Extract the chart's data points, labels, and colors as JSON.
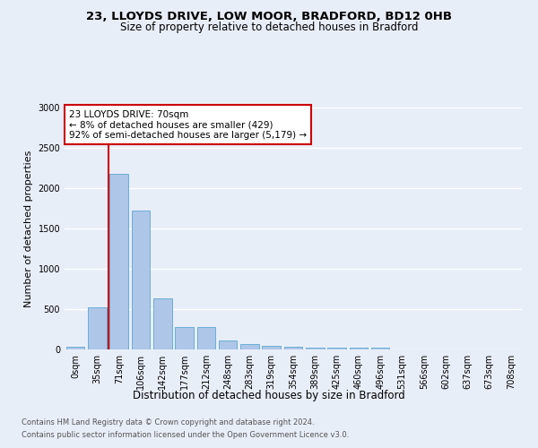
{
  "title_line1": "23, LLOYDS DRIVE, LOW MOOR, BRADFORD, BD12 0HB",
  "title_line2": "Size of property relative to detached houses in Bradford",
  "xlabel": "Distribution of detached houses by size in Bradford",
  "ylabel": "Number of detached properties",
  "categories": [
    "0sqm",
    "35sqm",
    "71sqm",
    "106sqm",
    "142sqm",
    "177sqm",
    "212sqm",
    "248sqm",
    "283sqm",
    "319sqm",
    "354sqm",
    "389sqm",
    "425sqm",
    "460sqm",
    "496sqm",
    "531sqm",
    "566sqm",
    "602sqm",
    "637sqm",
    "673sqm",
    "708sqm"
  ],
  "values": [
    30,
    520,
    2180,
    1720,
    635,
    280,
    280,
    110,
    70,
    45,
    30,
    25,
    25,
    20,
    20,
    0,
    0,
    0,
    0,
    0,
    0
  ],
  "bar_color": "#aec6e8",
  "bar_edge_color": "#6aaed6",
  "marker_bar_index": 2,
  "marker_line_color": "#cc0000",
  "annotation_line1": "23 LLOYDS DRIVE: 70sqm",
  "annotation_line2": "← 8% of detached houses are smaller (429)",
  "annotation_line3": "92% of semi-detached houses are larger (5,179) →",
  "annotation_box_color": "#ffffff",
  "annotation_box_edge": "#cc0000",
  "ylim": [
    0,
    3000
  ],
  "yticks": [
    0,
    500,
    1000,
    1500,
    2000,
    2500,
    3000
  ],
  "footer1": "Contains HM Land Registry data © Crown copyright and database right 2024.",
  "footer2": "Contains public sector information licensed under the Open Government Licence v3.0.",
  "background_color": "#e8eef8",
  "plot_bg_color": "#e8eef8",
  "title_fontsize": 9.5,
  "subtitle_fontsize": 8.5,
  "ylabel_fontsize": 8,
  "xlabel_fontsize": 8.5,
  "tick_fontsize": 7,
  "footer_fontsize": 6
}
